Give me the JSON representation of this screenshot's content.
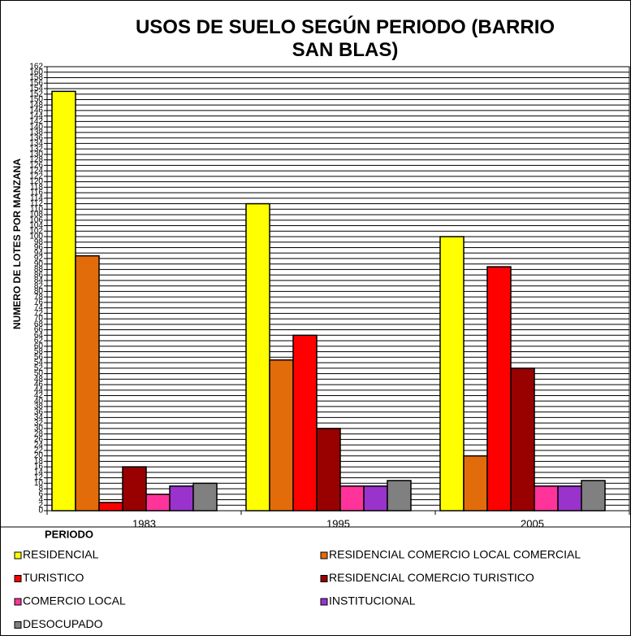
{
  "chart_data": {
    "type": "bar",
    "title": "USOS DE SUELO SEGÚN PERIODO (BARRIO SAN BLAS)",
    "x_label": "PERIODO",
    "y_label": "NUMERO DE LOTES POR MANZANA",
    "categories": [
      "1983",
      "1995",
      "2005"
    ],
    "series": [
      {
        "name": "RESIDENCIAL",
        "color": "#ffff00",
        "values": [
          153,
          112,
          100
        ]
      },
      {
        "name": "RESIDENCIAL COMERCIO LOCAL COMERCIAL",
        "color": "#e36c0a",
        "values": [
          93,
          55,
          20
        ]
      },
      {
        "name": "TURISTICO",
        "color": "#ff0000",
        "values": [
          3,
          64,
          89
        ]
      },
      {
        "name": "RESIDENCIAL COMERCIO TURISTICO",
        "color": "#990000",
        "values": [
          16,
          30,
          52
        ]
      },
      {
        "name": "COMERCIO LOCAL",
        "color": "#ff3399",
        "values": [
          6,
          9,
          9
        ]
      },
      {
        "name": "INSTITUCIONAL",
        "color": "#9933cc",
        "values": [
          9,
          9,
          9
        ]
      },
      {
        "name": "DESOCUPADO",
        "color": "#808080",
        "values": [
          10,
          11,
          11
        ]
      }
    ],
    "ylim": [
      0,
      162
    ],
    "yticks": [
      0,
      2,
      4,
      6,
      8,
      10,
      12,
      14,
      16,
      18,
      20,
      22,
      24,
      26,
      28,
      30,
      32,
      34,
      36,
      38,
      40,
      42,
      44,
      46,
      48,
      50,
      52,
      54,
      56,
      58,
      60,
      62,
      64,
      66,
      68,
      70,
      72,
      74,
      76,
      78,
      80,
      82,
      84,
      86,
      88,
      90,
      92,
      94,
      96,
      98,
      100,
      102,
      104,
      106,
      108,
      110,
      112,
      114,
      116,
      118,
      120,
      122,
      124,
      126,
      128,
      130,
      132,
      134,
      136,
      138,
      140,
      142,
      144,
      146,
      148,
      150,
      152,
      154,
      156,
      158,
      160,
      162
    ],
    "grid": true,
    "legend": "bottom"
  }
}
